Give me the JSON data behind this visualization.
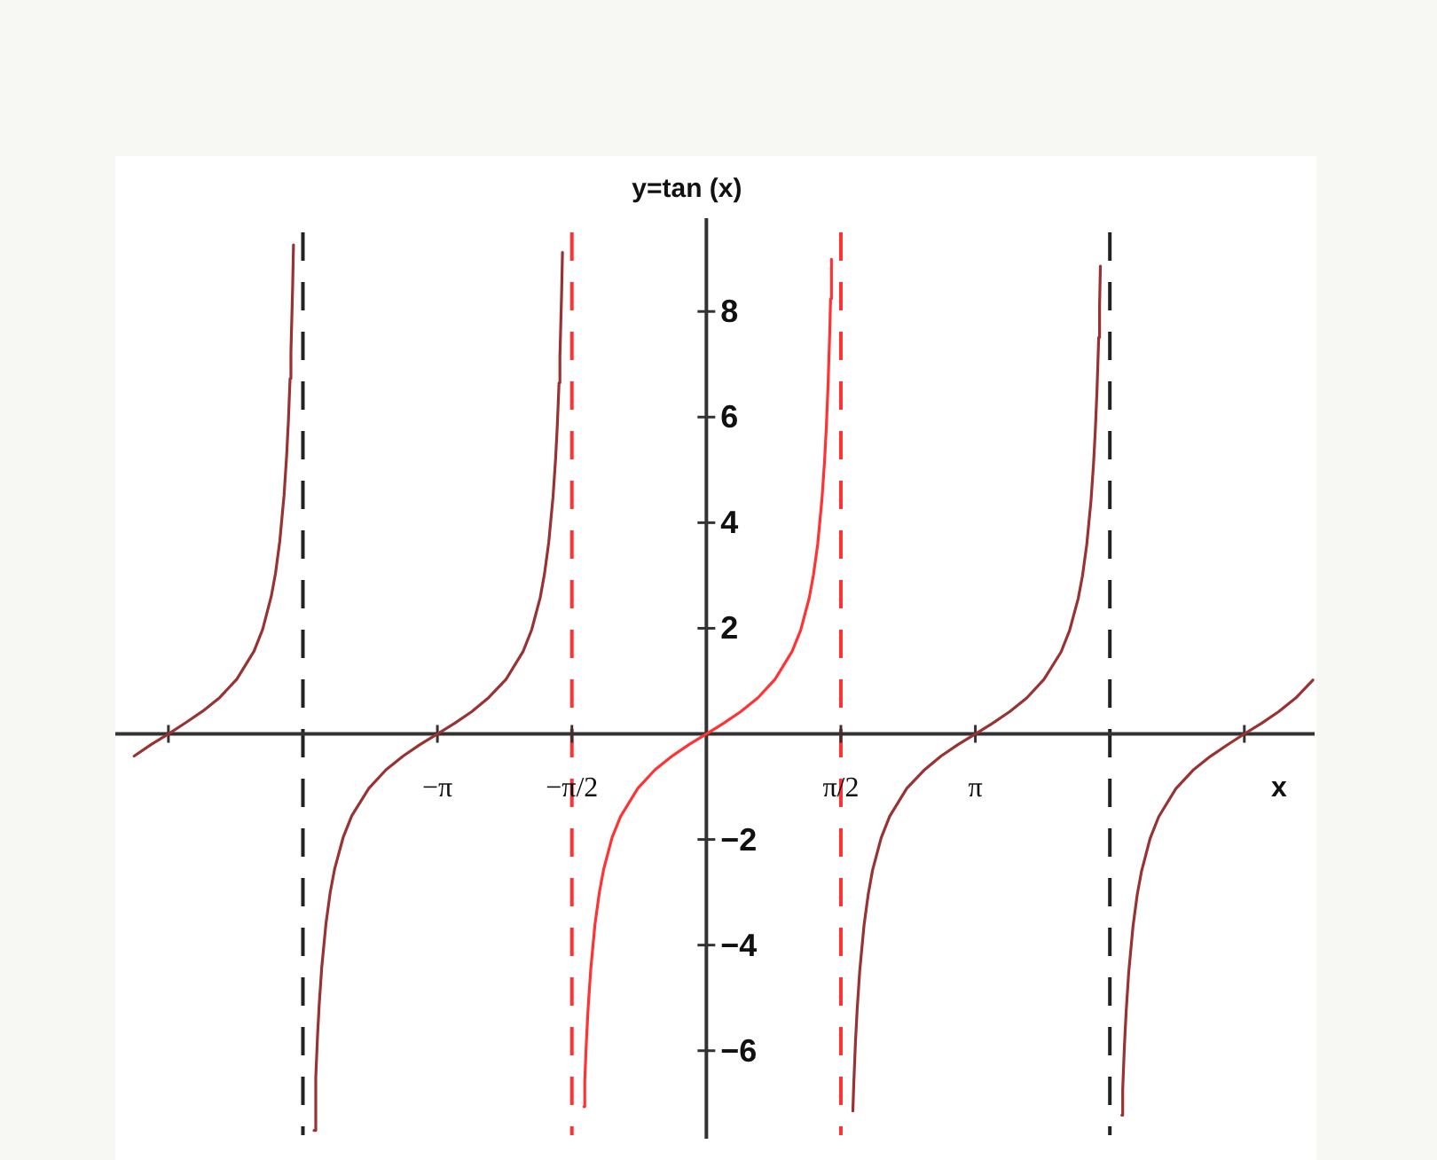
{
  "chart_data": {
    "type": "line",
    "title": "y=tan (x)",
    "xlabel": "x",
    "xlim": [
      -6.9,
      7.1
    ],
    "ylim": [
      -7.6,
      9.7
    ],
    "xticks": [
      {
        "value": -6.28,
        "label": null
      },
      {
        "value": -3.14,
        "label": "−π"
      },
      {
        "value": -1.57,
        "label": "−π/2"
      },
      {
        "value": 1.57,
        "label": "π/2"
      },
      {
        "value": 3.14,
        "label": "π"
      },
      {
        "value": 6.28,
        "label": null
      }
    ],
    "yticks": [
      {
        "value": -6,
        "label": "−6"
      },
      {
        "value": -4,
        "label": "−4"
      },
      {
        "value": -2,
        "label": "−2"
      },
      2,
      4,
      6,
      8
    ],
    "ref_lines": [
      {
        "axis": "x",
        "value": -4.71,
        "color": "#222222",
        "line_style": "dashed"
      },
      {
        "axis": "x",
        "value": -1.57,
        "color": "#ff3333",
        "line_style": "dashed"
      },
      {
        "axis": "x",
        "value": 1.57,
        "color": "#ff3333",
        "line_style": "dashed"
      },
      {
        "axis": "x",
        "value": 4.71,
        "color": "#222222",
        "line_style": "dashed"
      }
    ],
    "series": [
      {
        "color": "#993333",
        "x": [
          -6.68,
          -6.48,
          -6.28,
          -6.08,
          -5.88,
          -5.68,
          -5.48,
          -5.28,
          -5.18,
          -5.08,
          -5.03,
          -4.98,
          -4.93,
          -4.9,
          -4.88,
          -4.86,
          -4.85,
          -4.83,
          -4.82
        ],
        "values": [
          -0.42,
          -0.2,
          0,
          0.21,
          0.43,
          0.69,
          1.04,
          1.57,
          1.98,
          2.6,
          3.04,
          3.65,
          4.52,
          5.27,
          5.91,
          6.73,
          7.22,
          8.46,
          9.26
        ]
      },
      {
        "color": "#993333",
        "x": [
          -4.58,
          -4.56,
          -4.54,
          -4.52,
          -4.49,
          -4.44,
          -4.39,
          -4.34,
          -4.24,
          -4.14,
          -3.94,
          -3.74,
          -3.54,
          -3.34,
          -3.14,
          -2.94,
          -2.74,
          -2.54,
          -2.34,
          -2.14,
          -2.04,
          -1.94,
          -1.89,
          -1.84,
          -1.79,
          -1.76,
          -1.74,
          -1.72,
          -1.71,
          -1.69,
          -1.68
        ],
        "values": [
          -7.51,
          -6.51,
          -5.74,
          -5.13,
          -4.42,
          -3.58,
          -2.99,
          -2.56,
          -1.96,
          -1.55,
          -1.03,
          -0.68,
          -0.42,
          -0.2,
          0,
          0.2,
          0.42,
          0.69,
          1.03,
          1.56,
          1.97,
          2.58,
          3.03,
          3.63,
          4.49,
          5.22,
          5.85,
          6.65,
          7.14,
          8.35,
          9.12
        ]
      },
      {
        "color": "#ff3333",
        "x": [
          -1.43,
          -1.42,
          -1.4,
          -1.38,
          -1.35,
          -1.3,
          -1.25,
          -1.2,
          -1.1,
          -1.0,
          -0.8,
          -0.6,
          -0.4,
          -0.2,
          0,
          0.2,
          0.4,
          0.6,
          0.8,
          1.0,
          1.1,
          1.2,
          1.25,
          1.3,
          1.35,
          1.38,
          1.4,
          1.42,
          1.44,
          1.45,
          1.46
        ],
        "values": [
          -7.06,
          -6.58,
          -5.8,
          -5.18,
          -4.46,
          -3.6,
          -3.01,
          -2.57,
          -1.96,
          -1.56,
          -1.03,
          -0.68,
          -0.42,
          -0.2,
          0,
          0.2,
          0.42,
          0.68,
          1.03,
          1.56,
          1.96,
          2.57,
          3.01,
          3.6,
          4.46,
          5.18,
          5.8,
          6.58,
          7.6,
          8.24,
          8.99
        ]
      },
      {
        "color": "#993333",
        "x": [
          1.71,
          1.72,
          1.74,
          1.76,
          1.79,
          1.84,
          1.89,
          1.94,
          2.04,
          2.14,
          2.34,
          2.54,
          2.74,
          2.94,
          3.14,
          3.34,
          3.54,
          3.74,
          3.94,
          4.14,
          4.24,
          4.34,
          4.39,
          4.44,
          4.49,
          4.52,
          4.54,
          4.56,
          4.58,
          4.59,
          4.6
        ],
        "values": [
          -7.14,
          -6.65,
          -5.85,
          -5.22,
          -4.49,
          -3.63,
          -3.03,
          -2.58,
          -1.97,
          -1.56,
          -1.03,
          -0.69,
          -0.42,
          -0.2,
          0,
          0.2,
          0.42,
          0.68,
          1.03,
          1.55,
          1.96,
          2.56,
          2.99,
          3.58,
          4.42,
          5.13,
          5.74,
          6.51,
          7.51,
          8.13,
          8.86
        ]
      },
      {
        "color": "#993333",
        "x": [
          4.85,
          4.86,
          4.88,
          4.9,
          4.93,
          4.98,
          5.03,
          5.08,
          5.18,
          5.28,
          5.48,
          5.68,
          5.88,
          6.08,
          6.28,
          6.48,
          6.68,
          6.88,
          7.08
        ],
        "values": [
          -7.22,
          -6.73,
          -5.91,
          -5.27,
          -4.52,
          -3.65,
          -3.04,
          -2.6,
          -1.98,
          -1.57,
          -1.04,
          -0.69,
          -0.43,
          -0.21,
          0,
          0.2,
          0.42,
          0.68,
          1.02
        ]
      }
    ]
  }
}
